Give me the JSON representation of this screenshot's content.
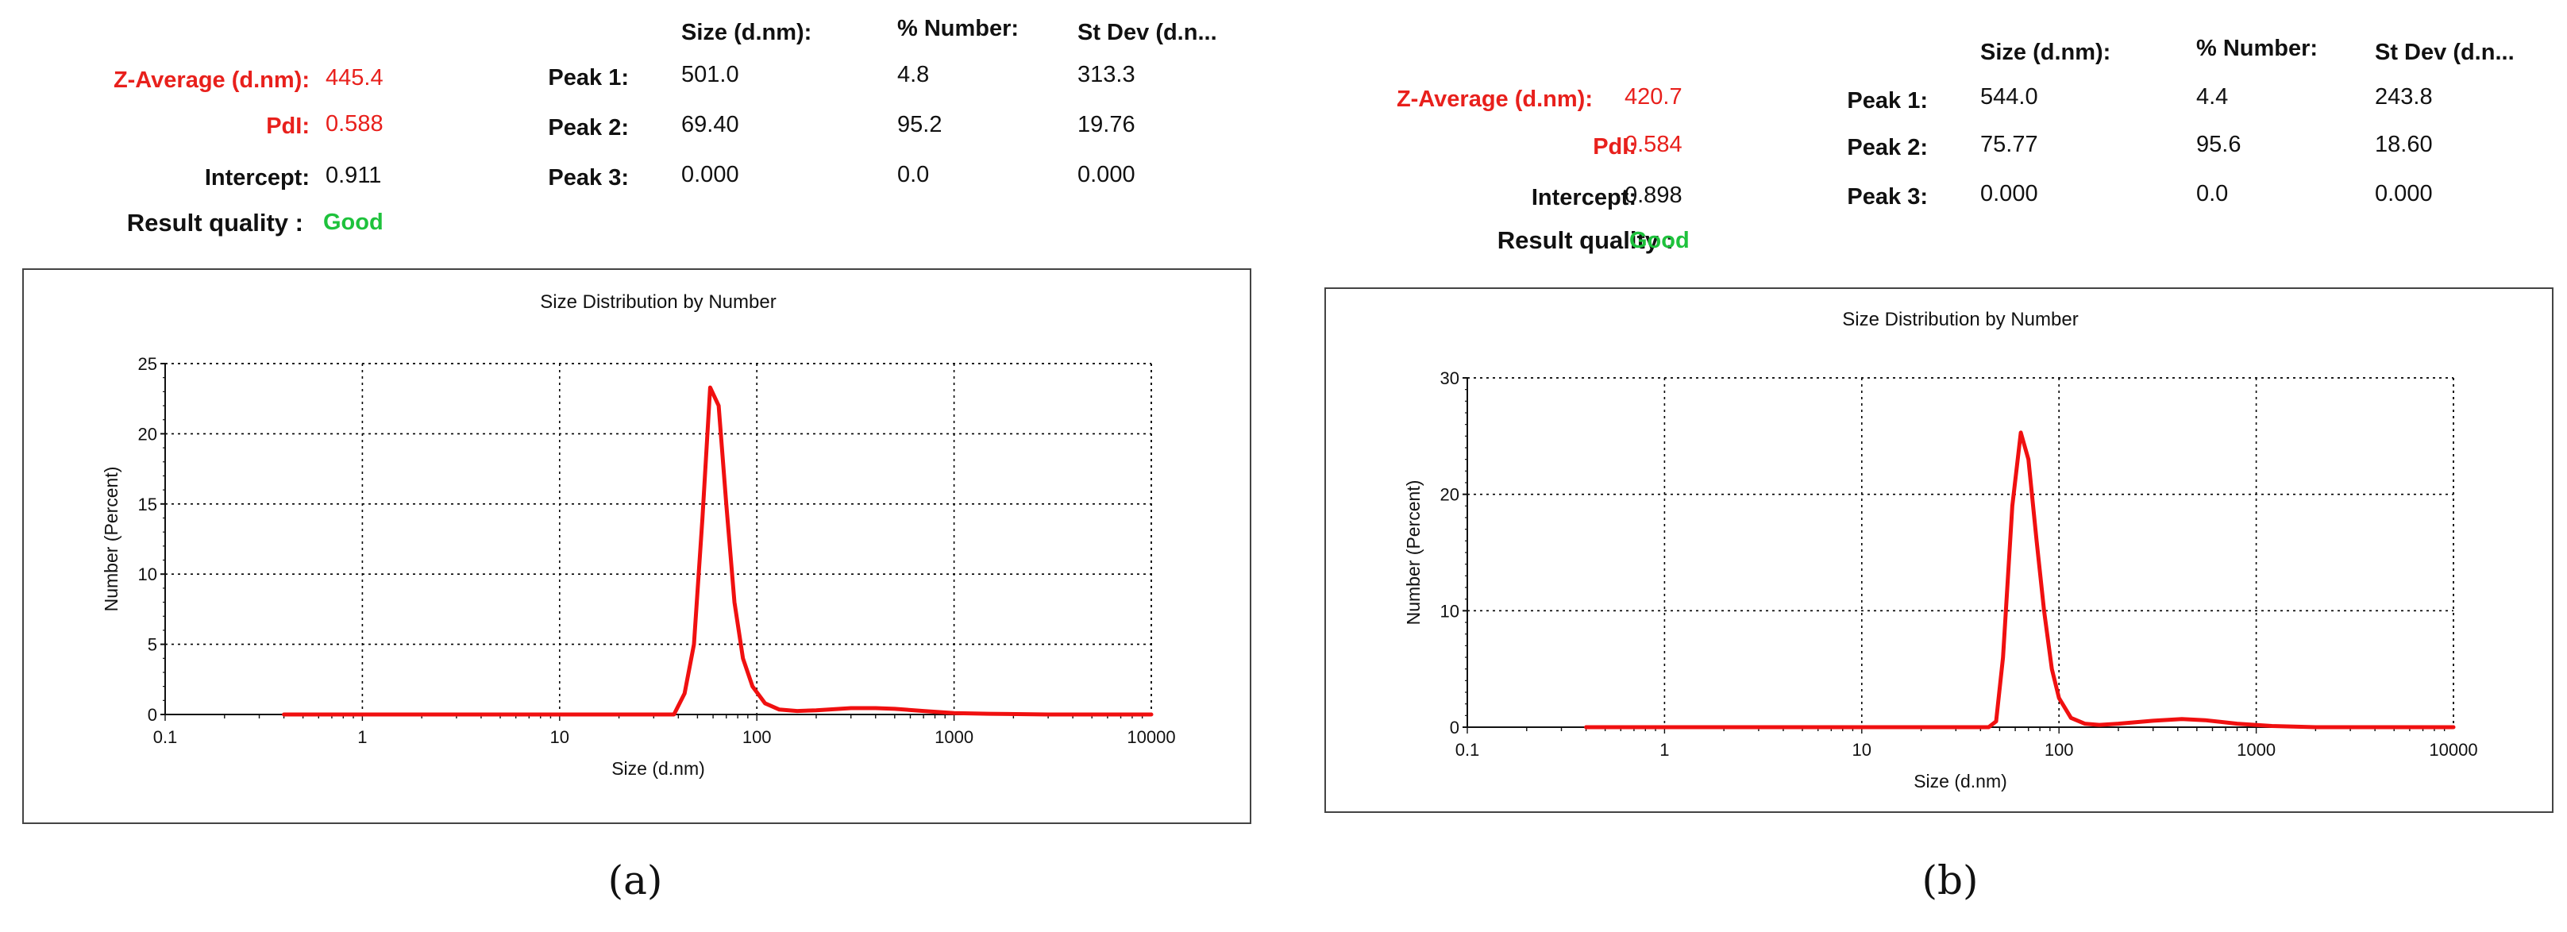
{
  "panels": [
    {
      "id": "a",
      "summary": {
        "z_average_label": "Z-Average (d.nm):",
        "z_average_value": "445.4",
        "pdi_label": "PdI:",
        "pdi_value": "0.588",
        "intercept_label": "Intercept:",
        "intercept_value": "0.911",
        "quality_label": "Result quality :",
        "quality_value": "Good"
      },
      "peaks_table": {
        "headers": [
          "Size (d.nm):",
          "% Number:",
          "St Dev (d.n..."
        ],
        "rows": [
          {
            "label": "Peak 1:",
            "size": "501.0",
            "number": "4.8",
            "stdev": "313.3"
          },
          {
            "label": "Peak 2:",
            "size": "69.40",
            "number": "95.2",
            "stdev": "19.76"
          },
          {
            "label": "Peak 3:",
            "size": "0.000",
            "number": "0.0",
            "stdev": "0.000"
          }
        ]
      },
      "caption": "(a)"
    },
    {
      "id": "b",
      "summary": {
        "z_average_label": "Z-Average (d.nm):",
        "z_average_value": "420.7",
        "pdi_label": "PdI:",
        "pdi_value": "0.584",
        "intercept_label": "Intercept:",
        "intercept_value": "0.898",
        "quality_label": "Result quality :",
        "quality_value": "Good"
      },
      "peaks_table": {
        "headers": [
          "Size (d.nm):",
          "% Number:",
          "St Dev (d.n..."
        ],
        "rows": [
          {
            "label": "Peak 1:",
            "size": "544.0",
            "number": "4.4",
            "stdev": "243.8"
          },
          {
            "label": "Peak 2:",
            "size": "75.77",
            "number": "95.6",
            "stdev": "18.60"
          },
          {
            "label": "Peak 3:",
            "size": "0.000",
            "number": "0.0",
            "stdev": "0.000"
          }
        ]
      },
      "caption": "(b)"
    }
  ],
  "colors": {
    "label_red": "#e8201c",
    "quality_green": "#1ec23c",
    "curve": "#f01010",
    "grid": "#000000"
  },
  "chart_data": [
    {
      "type": "line",
      "title": "Size Distribution by Number",
      "xlabel": "Size (d.nm)",
      "ylabel": "Number (Percent)",
      "x_scale": "log",
      "xlim": [
        0.1,
        10000
      ],
      "ylim": [
        0,
        25
      ],
      "x_ticks": [
        "0.1",
        "1",
        "10",
        "100",
        "1000",
        "10000"
      ],
      "y_ticks": [
        "0",
        "5",
        "10",
        "15",
        "20",
        "25"
      ],
      "grid": true,
      "series": [
        {
          "x": [
            0.4,
            1,
            10,
            30,
            38,
            43,
            48,
            53,
            58,
            64,
            70,
            77,
            85,
            95,
            110,
            130,
            160,
            200,
            300,
            400,
            500,
            700,
            1000,
            1500,
            3000,
            10000
          ],
          "y": [
            0,
            0,
            0,
            0,
            0,
            1.5,
            5,
            14,
            23.3,
            22,
            15,
            8,
            4,
            2,
            0.8,
            0.35,
            0.25,
            0.3,
            0.45,
            0.45,
            0.4,
            0.25,
            0.1,
            0.05,
            0,
            0
          ]
        }
      ]
    },
    {
      "type": "line",
      "title": "Size Distribution by Number",
      "xlabel": "Size (d.nm)",
      "ylabel": "Number (Percent)",
      "x_scale": "log",
      "xlim": [
        0.1,
        10000
      ],
      "ylim": [
        0,
        30
      ],
      "x_ticks": [
        "0.1",
        "1",
        "10",
        "100",
        "1000",
        "10000"
      ],
      "y_ticks": [
        "0",
        "10",
        "20",
        "30"
      ],
      "grid": true,
      "series": [
        {
          "x": [
            0.4,
            1,
            10,
            30,
            44,
            48,
            52,
            58,
            64,
            70,
            77,
            84,
            92,
            100,
            115,
            135,
            160,
            200,
            300,
            420,
            550,
            800,
            1200,
            2000,
            10000
          ],
          "y": [
            0,
            0,
            0,
            0,
            0,
            0.5,
            6,
            19,
            25.3,
            23,
            16,
            10,
            5,
            2.5,
            0.8,
            0.3,
            0.2,
            0.3,
            0.55,
            0.7,
            0.6,
            0.3,
            0.1,
            0,
            0
          ]
        }
      ]
    }
  ]
}
